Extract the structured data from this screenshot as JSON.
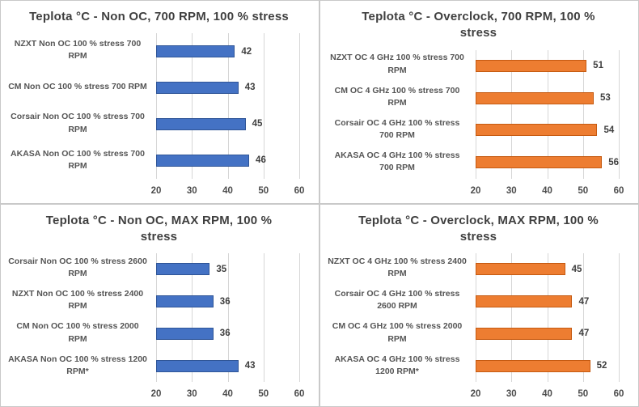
{
  "axis": {
    "xlim": [
      20,
      60
    ],
    "xticks": [
      "20",
      "30",
      "40",
      "50",
      "60"
    ]
  },
  "colors": {
    "blue": "#4472c4",
    "blue_border": "#2f5597",
    "orange": "#ed7d31",
    "orange_border": "#c55a11"
  },
  "chart_data": [
    {
      "type": "bar",
      "orientation": "horizontal",
      "title": "Teplota °C - Non OC, 700 RPM, 100 % stress",
      "categories": [
        "NZXT Non OC 100 % stress 700 RPM",
        "CM Non OC 100 % stress 700 RPM",
        "Corsair Non OC 100 % stress 700 RPM",
        "AKASA Non OC 100 % stress 700 RPM"
      ],
      "values": [
        42,
        43,
        45,
        46
      ],
      "xlabel": "",
      "ylabel": "",
      "xlim": [
        20,
        60
      ],
      "xticks": [
        "20",
        "30",
        "40",
        "50",
        "60"
      ],
      "grid": true,
      "data_labels": true,
      "color": "#4472c4",
      "border_color": "#2f5597"
    },
    {
      "type": "bar",
      "orientation": "horizontal",
      "title": "Teplota °C - Overclock, 700 RPM, 100 % stress",
      "categories": [
        "NZXT OC 4 GHz 100 % stress 700 RPM",
        "CM OC 4 GHz 100 % stress 700 RPM",
        "Corsair OC 4 GHz 100 % stress 700 RPM",
        "AKASA OC 4 GHz 100 % stress 700 RPM"
      ],
      "values": [
        51,
        53,
        54,
        56
      ],
      "xlabel": "",
      "ylabel": "",
      "xlim": [
        20,
        60
      ],
      "xticks": [
        "20",
        "30",
        "40",
        "50",
        "60"
      ],
      "grid": true,
      "data_labels": true,
      "color": "#ed7d31",
      "border_color": "#c55a11"
    },
    {
      "type": "bar",
      "orientation": "horizontal",
      "title": "Teplota °C - Non OC, MAX RPM, 100 % stress",
      "categories": [
        "Corsair Non OC 100 % stress 2600 RPM",
        "NZXT Non OC 100 % stress 2400 RPM",
        "CM Non OC 100 % stress 2000 RPM",
        "AKASA Non OC 100 % stress 1200 RPM*"
      ],
      "values": [
        35,
        36,
        36,
        43
      ],
      "xlabel": "",
      "ylabel": "",
      "xlim": [
        20,
        60
      ],
      "xticks": [
        "20",
        "30",
        "40",
        "50",
        "60"
      ],
      "grid": true,
      "data_labels": true,
      "color": "#4472c4",
      "border_color": "#2f5597"
    },
    {
      "type": "bar",
      "orientation": "horizontal",
      "title": "Teplota °C - Overclock, MAX RPM, 100 % stress",
      "categories": [
        "NZXT OC 4 GHz 100 % stress 2400 RPM",
        "Corsair OC 4 GHz 100 % stress 2600 RPM",
        "CM OC 4 GHz 100 % stress 2000 RPM",
        "AKASA OC 4 GHz 100 % stress 1200 RPM*"
      ],
      "values": [
        45,
        47,
        47,
        52
      ],
      "xlabel": "",
      "ylabel": "",
      "xlim": [
        20,
        60
      ],
      "xticks": [
        "20",
        "30",
        "40",
        "50",
        "60"
      ],
      "grid": true,
      "data_labels": true,
      "color": "#ed7d31",
      "border_color": "#c55a11"
    }
  ]
}
